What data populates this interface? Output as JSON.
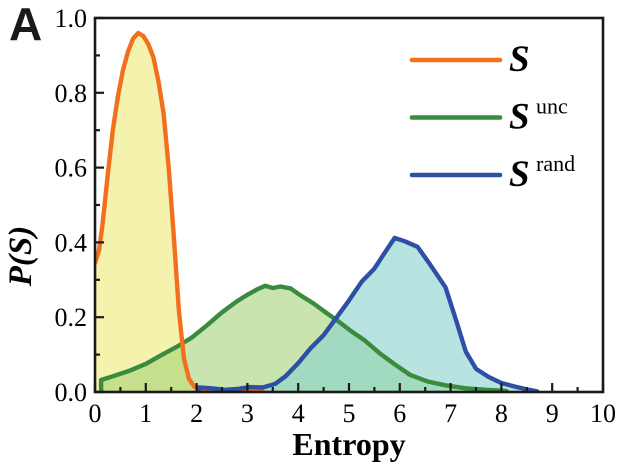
{
  "panel_label": "A",
  "colors": {
    "frame": "#1a1a1a",
    "s_line": "#f2701d",
    "s_fill": "rgba(243,240,160,0.88)",
    "s_unc_line": "#3a8b3e",
    "s_unc_fill": "rgba(165,210,120,0.60)",
    "s_rand_line": "#2d4fa4",
    "s_rand_fill": "rgba(135,210,205,0.60)"
  },
  "x_axis": {
    "label": "Entropy",
    "tick_values": [
      0,
      1,
      2,
      3,
      4,
      5,
      6,
      7,
      8,
      9,
      10
    ],
    "tick_labels": [
      "0",
      "1",
      "2",
      "3",
      "4",
      "5",
      "6",
      "7",
      "8",
      "9",
      "10"
    ],
    "min": 0,
    "max": 10
  },
  "y_axis": {
    "label": "P(S)",
    "tick_values": [
      0.0,
      0.2,
      0.4,
      0.6,
      0.8,
      1.0
    ],
    "tick_labels": [
      "0.0",
      "0.2",
      "0.4",
      "0.6",
      "0.8",
      "1.0"
    ],
    "min": 0,
    "max": 1.0
  },
  "legend": {
    "items": [
      {
        "key": "s",
        "label": "S",
        "superscript": "",
        "color": "#f2701d"
      },
      {
        "key": "s-unc",
        "label": "S",
        "superscript": "unc",
        "color": "#3a8b3e"
      },
      {
        "key": "s-rand",
        "label": "S",
        "superscript": "rand",
        "color": "#2d4fa4"
      }
    ]
  },
  "chart_data": {
    "type": "area",
    "title": "",
    "xlabel": "Entropy",
    "ylabel": "P(S)",
    "xlim": [
      0,
      10
    ],
    "ylim": [
      0,
      1.0
    ],
    "grid": false,
    "legend_position": "upper right",
    "series": [
      {
        "name": "S",
        "key": "s",
        "line_color": "#f2701d",
        "fill_color": "rgba(243,240,160,0.88)",
        "points": [
          [
            0,
            0.345
          ],
          [
            0.08,
            0.38
          ],
          [
            0.15,
            0.45
          ],
          [
            0.25,
            0.58
          ],
          [
            0.35,
            0.7
          ],
          [
            0.45,
            0.79
          ],
          [
            0.55,
            0.86
          ],
          [
            0.65,
            0.91
          ],
          [
            0.75,
            0.945
          ],
          [
            0.85,
            0.96
          ],
          [
            0.95,
            0.952
          ],
          [
            1.05,
            0.93
          ],
          [
            1.15,
            0.895
          ],
          [
            1.25,
            0.83
          ],
          [
            1.35,
            0.745
          ],
          [
            1.45,
            0.6
          ],
          [
            1.55,
            0.42
          ],
          [
            1.65,
            0.22
          ],
          [
            1.75,
            0.09
          ],
          [
            1.85,
            0.035
          ],
          [
            1.95,
            0.015
          ],
          [
            2.1,
            0.007
          ],
          [
            2.3,
            0.005
          ],
          [
            2.6,
            0.004
          ],
          [
            2.9,
            0.003
          ],
          [
            3.15,
            0.002
          ],
          [
            3.3,
            0.001
          ]
        ]
      },
      {
        "name": "S unc",
        "key": "s-unc",
        "line_color": "#3a8b3e",
        "fill_color": "rgba(165,210,120,0.60)",
        "points": [
          [
            0.12,
            0
          ],
          [
            0.12,
            0.032
          ],
          [
            0.35,
            0.042
          ],
          [
            0.7,
            0.058
          ],
          [
            1.0,
            0.075
          ],
          [
            1.3,
            0.098
          ],
          [
            1.6,
            0.12
          ],
          [
            1.9,
            0.145
          ],
          [
            2.2,
            0.178
          ],
          [
            2.5,
            0.213
          ],
          [
            2.8,
            0.243
          ],
          [
            3.0,
            0.26
          ],
          [
            3.2,
            0.275
          ],
          [
            3.35,
            0.284
          ],
          [
            3.5,
            0.278
          ],
          [
            3.65,
            0.282
          ],
          [
            3.85,
            0.277
          ],
          [
            4.05,
            0.258
          ],
          [
            4.3,
            0.237
          ],
          [
            4.55,
            0.212
          ],
          [
            4.8,
            0.188
          ],
          [
            5.05,
            0.162
          ],
          [
            5.3,
            0.139
          ],
          [
            5.6,
            0.104
          ],
          [
            5.9,
            0.074
          ],
          [
            6.2,
            0.046
          ],
          [
            6.55,
            0.028
          ],
          [
            6.9,
            0.018
          ],
          [
            7.3,
            0.01
          ],
          [
            7.7,
            0.006
          ],
          [
            8.1,
            0.003
          ]
        ]
      },
      {
        "name": "S rand",
        "key": "s-rand",
        "line_color": "#2d4fa4",
        "fill_color": "rgba(135,210,205,0.60)",
        "points": [
          [
            2.05,
            0
          ],
          [
            2.05,
            0.012
          ],
          [
            2.3,
            0.01
          ],
          [
            2.55,
            0.006
          ],
          [
            2.8,
            0.008
          ],
          [
            3.05,
            0.013
          ],
          [
            3.3,
            0.012
          ],
          [
            3.55,
            0.022
          ],
          [
            3.75,
            0.042
          ],
          [
            4.0,
            0.077
          ],
          [
            4.25,
            0.118
          ],
          [
            4.5,
            0.152
          ],
          [
            4.75,
            0.198
          ],
          [
            5.0,
            0.245
          ],
          [
            5.25,
            0.295
          ],
          [
            5.5,
            0.33
          ],
          [
            5.7,
            0.372
          ],
          [
            5.9,
            0.412
          ],
          [
            6.1,
            0.403
          ],
          [
            6.35,
            0.388
          ],
          [
            6.6,
            0.34
          ],
          [
            6.9,
            0.28
          ],
          [
            7.1,
            0.195
          ],
          [
            7.3,
            0.108
          ],
          [
            7.5,
            0.062
          ],
          [
            7.75,
            0.04
          ],
          [
            8.0,
            0.024
          ],
          [
            8.25,
            0.015
          ],
          [
            8.5,
            0.007
          ],
          [
            8.7,
            0.002
          ]
        ]
      }
    ]
  }
}
